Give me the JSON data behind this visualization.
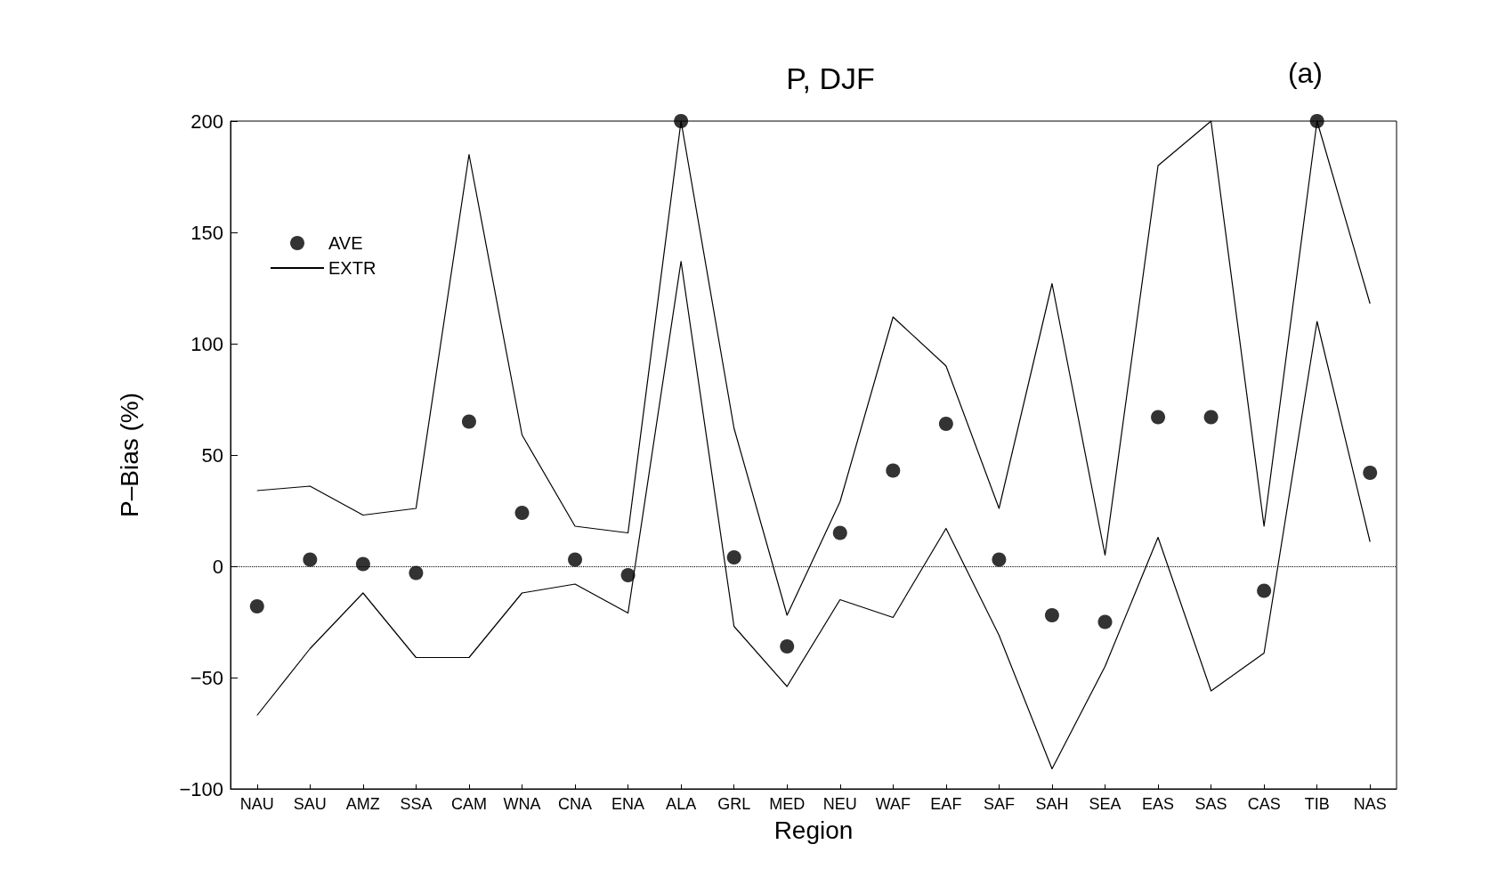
{
  "chart_data": {
    "type": "line",
    "title": "P, DJF",
    "xlabel": "Region",
    "ylabel": "P–Bias (%)",
    "annotations": [
      "(a)"
    ],
    "categories": [
      "NAU",
      "SAU",
      "AMZ",
      "SSA",
      "CAM",
      "WNA",
      "CNA",
      "ENA",
      "ALA",
      "GRL",
      "MED",
      "NEU",
      "WAF",
      "EAF",
      "SAF",
      "SAH",
      "SEA",
      "EAS",
      "SAS",
      "CAS",
      "TIB",
      "NAS"
    ],
    "series": [
      {
        "name": "AVE",
        "type": "scatter",
        "marker": "circle",
        "color": "#000000",
        "values": [
          -18,
          3,
          1,
          -3,
          65,
          24,
          3,
          -4,
          200,
          4,
          -36,
          15,
          43,
          64,
          3,
          -22,
          -25,
          67,
          67,
          -11,
          200,
          42
        ]
      },
      {
        "name": "EXTR",
        "marker": "none",
        "line_style": "solid",
        "color": "#000000",
        "values": [
          34,
          36,
          23,
          26,
          185,
          59,
          18,
          15,
          200,
          62,
          -22,
          29,
          112,
          90,
          26,
          127,
          5,
          180,
          200,
          18,
          200,
          118
        ]
      },
      {
        "marker": "none",
        "line_style": "solid",
        "color": "#000000",
        "values": [
          -67,
          -37,
          -12,
          -41,
          -41,
          -12,
          -8,
          -21,
          137,
          -27,
          -54,
          -15,
          -23,
          17,
          -31,
          -91,
          -45,
          13,
          -56,
          -39,
          110,
          11
        ]
      }
    ],
    "ylim": [
      -100,
      200
    ],
    "yticks": [
      -100,
      -50,
      0,
      50,
      100,
      150,
      200
    ],
    "grid": false,
    "legend": "top left",
    "ref_lines": [
      {
        "axis": "y",
        "value": 0,
        "line_style": "dotted",
        "color": "#000000"
      }
    ]
  }
}
